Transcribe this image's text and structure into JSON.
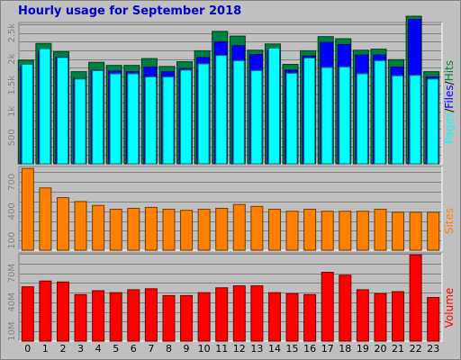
{
  "chart_title": "Hourly usage for September 2018",
  "colors": {
    "hits": "#008040",
    "files": "#0000ff",
    "pages": "#00ffff",
    "sites": "#ff8000",
    "volume": "#ff0000"
  },
  "chart_data": [
    {
      "type": "bar",
      "panel": "hits-files-pages",
      "categories": [
        "0",
        "1",
        "2",
        "3",
        "4",
        "5",
        "6",
        "7",
        "8",
        "9",
        "10",
        "11",
        "12",
        "13",
        "14",
        "15",
        "16",
        "17",
        "18",
        "19",
        "20",
        "21",
        "22",
        "23"
      ],
      "ylim": [
        0,
        2700
      ],
      "yticks": [
        "500",
        "1k",
        "1.5k",
        "2k",
        "2.5k"
      ],
      "ylabel_parts": [
        "Pages",
        "/",
        "Files",
        "/",
        "Hits"
      ],
      "series": [
        {
          "name": "Hits",
          "values": [
            1980,
            2300,
            2140,
            1760,
            1940,
            1880,
            1880,
            2010,
            1860,
            1950,
            2160,
            2530,
            2440,
            2170,
            2290,
            1900,
            2160,
            2430,
            2390,
            2170,
            2190,
            1990,
            2820,
            1760
          ]
        },
        {
          "name": "Files",
          "values": [
            1860,
            2150,
            2040,
            1630,
            1790,
            1770,
            1760,
            1850,
            1760,
            1820,
            2030,
            2330,
            2260,
            2090,
            2160,
            1790,
            2060,
            2320,
            2280,
            2080,
            2080,
            1850,
            2760,
            1660
          ]
        },
        {
          "name": "Pages",
          "values": [
            1900,
            2200,
            2030,
            1620,
            1780,
            1720,
            1720,
            1660,
            1660,
            1790,
            1910,
            2070,
            1970,
            1780,
            2210,
            1730,
            2020,
            1840,
            1850,
            1720,
            1970,
            1680,
            1690,
            1620
          ]
        }
      ]
    },
    {
      "type": "bar",
      "panel": "sites",
      "categories": [
        "0",
        "1",
        "2",
        "3",
        "4",
        "5",
        "6",
        "7",
        "8",
        "9",
        "10",
        "11",
        "12",
        "13",
        "14",
        "15",
        "16",
        "17",
        "18",
        "19",
        "20",
        "21",
        "22",
        "23"
      ],
      "ylim": [
        0,
        860
      ],
      "yticks": [
        "100",
        "400",
        "700"
      ],
      "ylabel": "Sites",
      "series": [
        {
          "name": "Sites",
          "values": [
            840,
            640,
            540,
            500,
            460,
            420,
            430,
            440,
            420,
            410,
            420,
            430,
            470,
            450,
            420,
            400,
            420,
            400,
            400,
            400,
            420,
            390,
            390,
            390
          ]
        }
      ]
    },
    {
      "type": "bar",
      "panel": "volume",
      "categories": [
        "0",
        "1",
        "2",
        "3",
        "4",
        "5",
        "6",
        "7",
        "8",
        "9",
        "10",
        "11",
        "12",
        "13",
        "14",
        "15",
        "16",
        "17",
        "18",
        "19",
        "20",
        "21",
        "22",
        "23"
      ],
      "ylim": [
        0,
        91
      ],
      "yticks": [
        "10M",
        "40M",
        "70M"
      ],
      "ylabel": "Volume",
      "series": [
        {
          "name": "Volume",
          "values": [
            56,
            62,
            61,
            48,
            52,
            50,
            53,
            54,
            47,
            47,
            50,
            55,
            57,
            57,
            50,
            49,
            48,
            71,
            68,
            53,
            49,
            51,
            89,
            45
          ]
        }
      ]
    }
  ]
}
